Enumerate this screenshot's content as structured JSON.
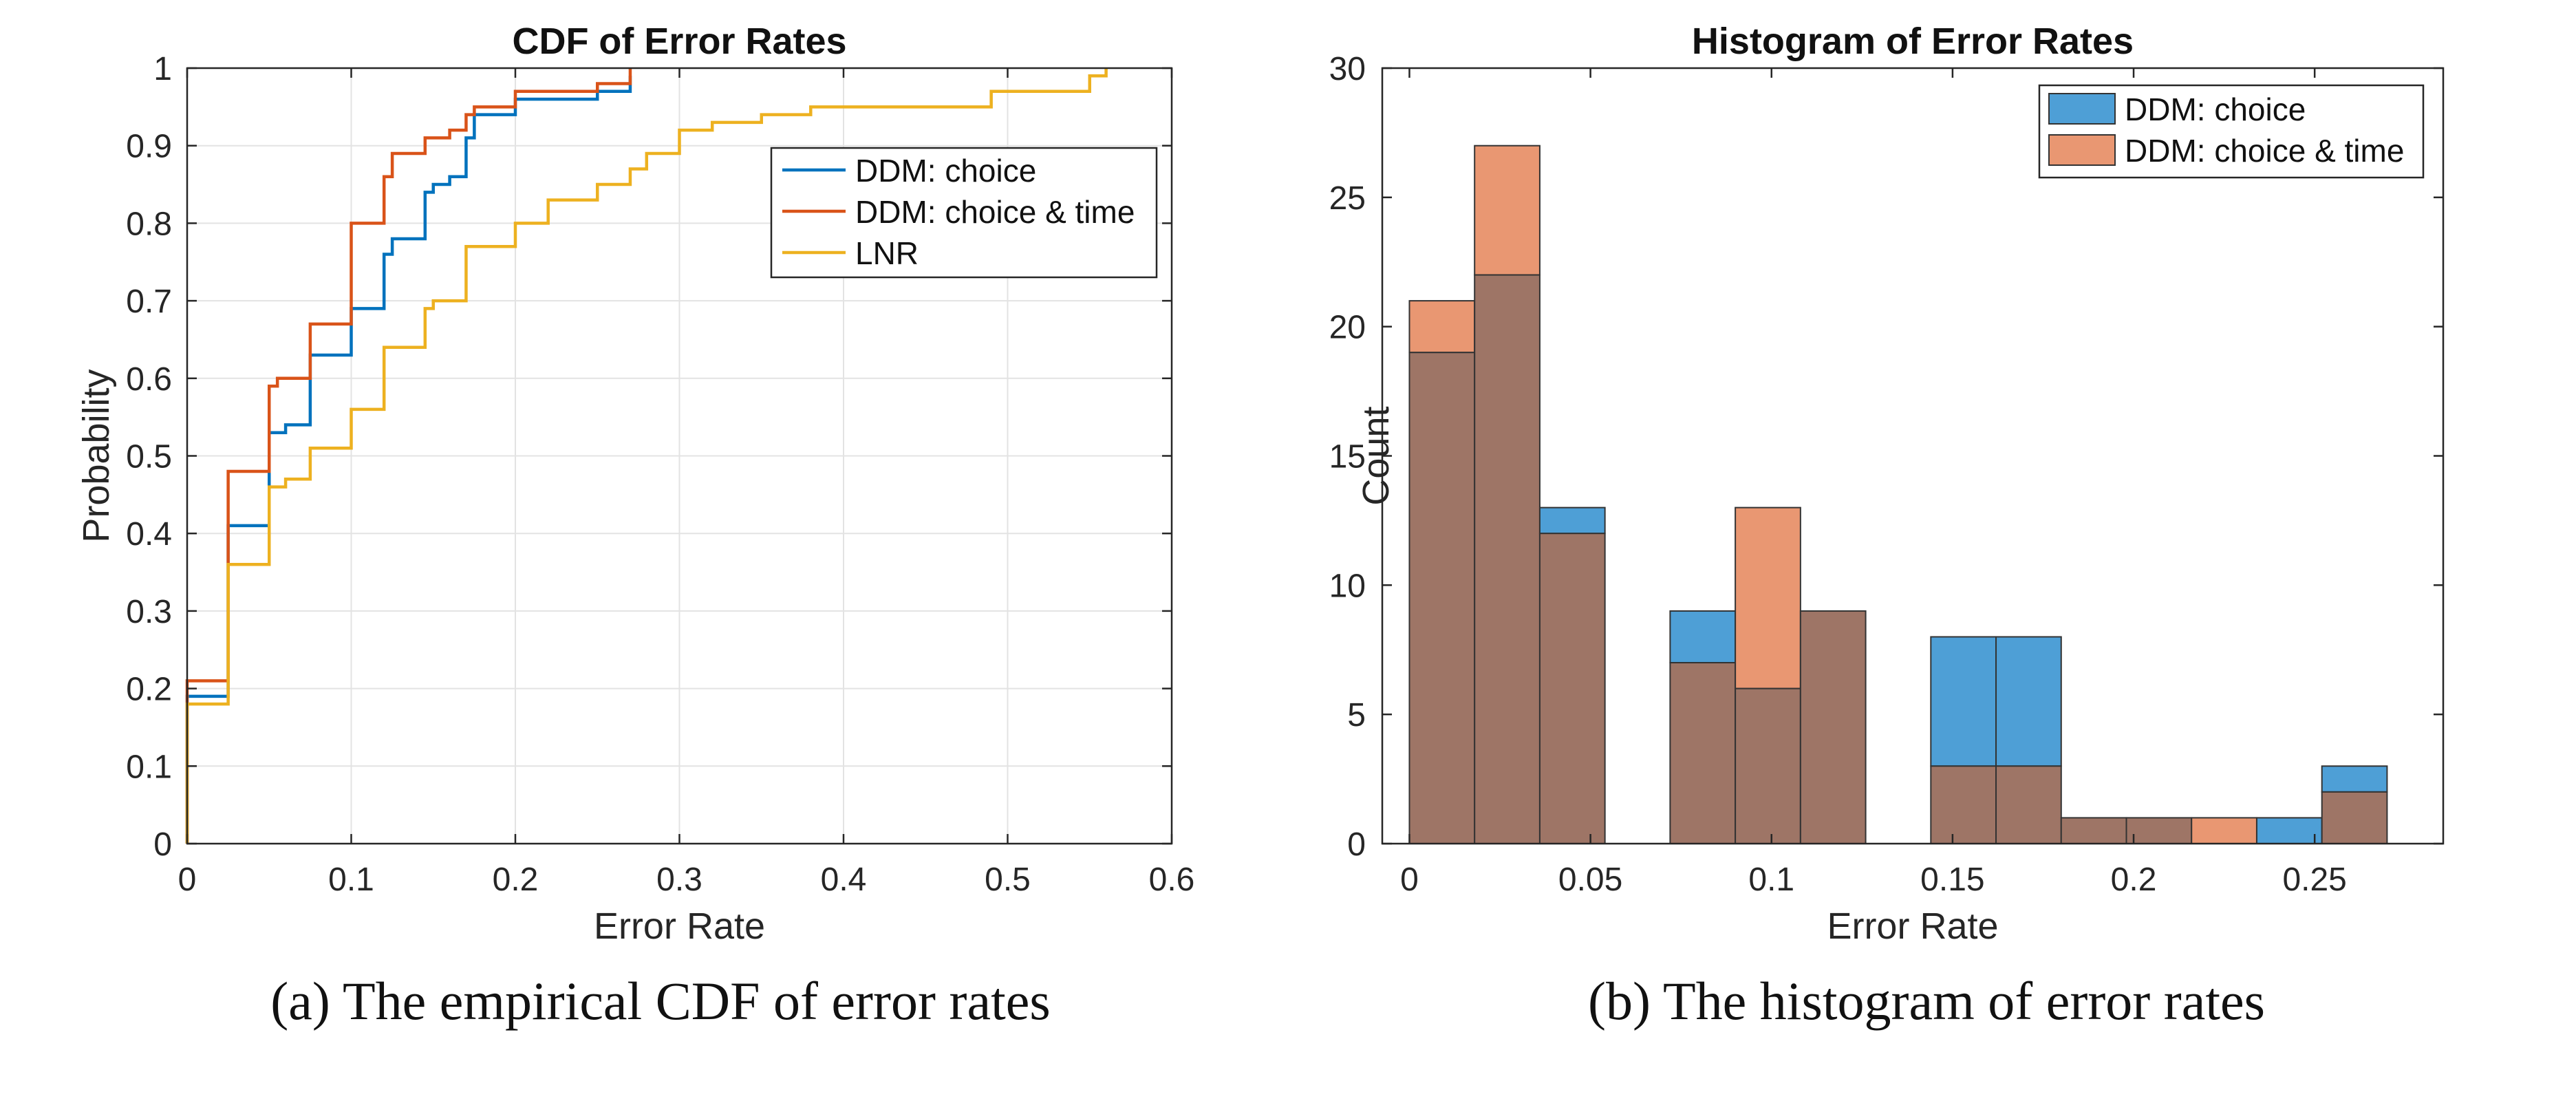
{
  "captions": {
    "a": "(a) The empirical CDF of error rates",
    "b": "(b) The histogram of error rates"
  },
  "chart_data": [
    {
      "type": "line",
      "title": "CDF of Error Rates",
      "xlabel": "Error Rate",
      "ylabel": "Probability",
      "xlim": [
        0,
        0.6
      ],
      "ylim": [
        0,
        1
      ],
      "xticks": [
        0,
        0.1,
        0.2,
        0.3,
        0.4,
        0.5,
        0.6
      ],
      "xtick_labels": [
        "0",
        "0.1",
        "0.2",
        "0.3",
        "0.4",
        "0.5",
        "0.6"
      ],
      "yticks": [
        0,
        0.1,
        0.2,
        0.3,
        0.4,
        0.5,
        0.6,
        0.7,
        0.8,
        0.9,
        1
      ],
      "ytick_labels": [
        "0",
        "0.1",
        "0.2",
        "0.3",
        "0.4",
        "0.5",
        "0.6",
        "0.7",
        "0.8",
        "0.9",
        "1"
      ],
      "grid": true,
      "legend_position": "top-right",
      "series": [
        {
          "name": "DDM: choice",
          "color": "#0072BD",
          "step": true,
          "x": [
            0,
            0.025,
            0.05,
            0.06,
            0.075,
            0.1,
            0.12,
            0.125,
            0.145,
            0.15,
            0.155,
            0.16,
            0.17,
            0.175,
            0.18,
            0.2,
            0.25,
            0.27
          ],
          "y": [
            0.19,
            0.41,
            0.53,
            0.54,
            0.63,
            0.69,
            0.76,
            0.78,
            0.84,
            0.85,
            0.85,
            0.86,
            0.91,
            0.94,
            0.94,
            0.96,
            0.97,
            0.99
          ]
        },
        {
          "name": "DDM: choice & time",
          "color": "#D95319",
          "step": true,
          "x": [
            0,
            0.025,
            0.05,
            0.055,
            0.075,
            0.1,
            0.12,
            0.125,
            0.145,
            0.15,
            0.16,
            0.17,
            0.175,
            0.2,
            0.25,
            0.27
          ],
          "y": [
            0.21,
            0.48,
            0.59,
            0.6,
            0.67,
            0.8,
            0.86,
            0.89,
            0.91,
            0.91,
            0.92,
            0.94,
            0.95,
            0.97,
            0.98,
            1.0
          ]
        },
        {
          "name": "LNR",
          "color": "#EDB120",
          "step": true,
          "x": [
            0,
            0.025,
            0.05,
            0.06,
            0.075,
            0.1,
            0.12,
            0.125,
            0.145,
            0.15,
            0.17,
            0.175,
            0.2,
            0.22,
            0.225,
            0.25,
            0.27,
            0.28,
            0.3,
            0.32,
            0.35,
            0.38,
            0.46,
            0.49,
            0.52,
            0.55,
            0.56
          ],
          "y": [
            0.18,
            0.36,
            0.46,
            0.47,
            0.51,
            0.56,
            0.64,
            0.64,
            0.69,
            0.7,
            0.77,
            0.77,
            0.8,
            0.83,
            0.83,
            0.85,
            0.87,
            0.89,
            0.92,
            0.93,
            0.94,
            0.95,
            0.95,
            0.97,
            0.97,
            0.99,
            1.0
          ]
        }
      ]
    },
    {
      "type": "bar",
      "title": "Histogram of Error Rates",
      "xlabel": "Error Rate",
      "ylabel": "Count",
      "xlim": [
        -0.0075,
        0.2855
      ],
      "ylim": [
        0,
        30
      ],
      "xticks": [
        0,
        0.05,
        0.1,
        0.15,
        0.2,
        0.25
      ],
      "xtick_labels": [
        "0",
        "0.05",
        "0.1",
        "0.15",
        "0.2",
        "0.25"
      ],
      "yticks": [
        0,
        5,
        10,
        15,
        20,
        25,
        30
      ],
      "ytick_labels": [
        "0",
        "5",
        "10",
        "15",
        "20",
        "25",
        "30"
      ],
      "grid": false,
      "legend_position": "top-right",
      "bin_width": 0.018,
      "bin_starts": [
        0,
        0.018,
        0.036,
        0.054,
        0.072,
        0.09,
        0.108,
        0.126,
        0.144,
        0.162,
        0.18,
        0.198,
        0.216,
        0.234,
        0.252
      ],
      "overlap_color": "#9E7566",
      "series": [
        {
          "name": "DDM: choice",
          "color": "#4E9FD6",
          "values": [
            19,
            22,
            13,
            0,
            9,
            6,
            9,
            0,
            8,
            8,
            1,
            1,
            0,
            1,
            3
          ]
        },
        {
          "name": "DDM: choice & time",
          "color": "#E99772",
          "values": [
            21,
            27,
            12,
            0,
            7,
            13,
            9,
            0,
            3,
            3,
            1,
            1,
            1,
            0,
            2
          ]
        }
      ]
    }
  ]
}
